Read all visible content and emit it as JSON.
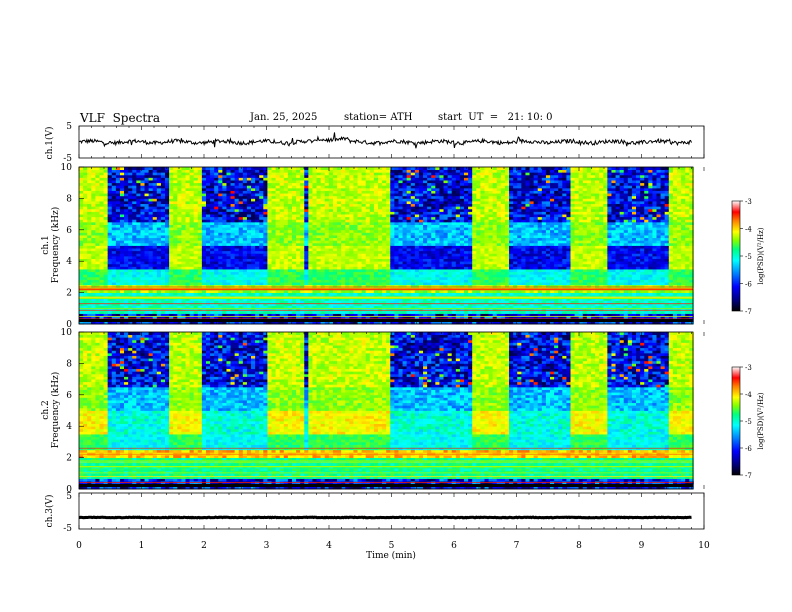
{
  "header": {
    "title": "VLF  Spectra",
    "date": "Jan. 25, 2025",
    "station": "station= ATH",
    "start": "start  UT  =   21: 10: 0"
  },
  "chart_data": [
    {
      "type": "line",
      "panel": "ch1-waveform",
      "ylabel": "ch.1(V)",
      "ylim": [
        -5,
        5
      ],
      "yticks": [
        "5",
        "-5"
      ],
      "xlim": [
        0,
        10
      ],
      "series_color": "#000000",
      "baseline_value": 0
    },
    {
      "type": "heatmap",
      "panel": "ch1-spectrogram",
      "ylabel": "ch.1\nFrequency (kHz)",
      "ylim": [
        0,
        10
      ],
      "yticks": [
        "0",
        "2",
        "4",
        "6",
        "8",
        "10"
      ],
      "xlim": [
        0,
        10
      ],
      "high_activity_intervals_min": [
        [
          0.0,
          0.45
        ],
        [
          1.45,
          1.95
        ],
        [
          3.0,
          3.6
        ],
        [
          3.65,
          4.95
        ],
        [
          6.3,
          6.85
        ],
        [
          7.85,
          8.45
        ],
        [
          9.45,
          9.8
        ]
      ],
      "colorbar": {
        "label": "log(PSD)(V²/Hz)",
        "min": -7,
        "max": -3,
        "ticks": [
          "-3",
          "-4",
          "-5",
          "-6",
          "-7"
        ]
      }
    },
    {
      "type": "heatmap",
      "panel": "ch2-spectrogram",
      "ylabel": "ch.2\nFrequency (kHz)",
      "ylim": [
        0,
        10
      ],
      "yticks": [
        "0",
        "2",
        "4",
        "6",
        "8",
        "10"
      ],
      "xlim": [
        0,
        10
      ],
      "high_activity_intervals_min": [
        [
          0.0,
          0.45
        ],
        [
          1.45,
          1.95
        ],
        [
          3.0,
          3.6
        ],
        [
          3.65,
          4.95
        ],
        [
          6.3,
          6.85
        ],
        [
          7.85,
          8.45
        ],
        [
          9.45,
          9.8
        ]
      ],
      "colorbar": {
        "label": "log(PSD)(V²/Hz)",
        "min": -7,
        "max": -3,
        "ticks": [
          "-3",
          "-4",
          "-5",
          "-6",
          "-7"
        ]
      }
    },
    {
      "type": "line",
      "panel": "ch3-waveform",
      "ylabel": "ch.3(V)",
      "ylim": [
        -5,
        5
      ],
      "yticks": [
        "5",
        "-5"
      ],
      "xlim": [
        0,
        10
      ],
      "series_color": "#000000",
      "baseline_value": -1.8
    }
  ],
  "xaxis": {
    "label": "Time  (min)",
    "ticks": [
      "0",
      "1",
      "2",
      "3",
      "4",
      "5",
      "6",
      "7",
      "8",
      "9",
      "10"
    ]
  },
  "colors": {
    "colormap": [
      "#000000",
      "#000080",
      "#0000ff",
      "#0080ff",
      "#00ffff",
      "#00ff80",
      "#80ff00",
      "#ffff00",
      "#ff8000",
      "#ff0000",
      "#ffffff"
    ]
  }
}
